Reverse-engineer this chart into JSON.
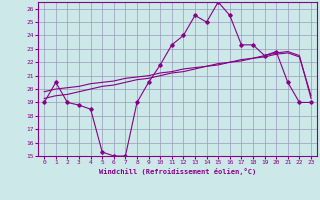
{
  "xlabel": "Windchill (Refroidissement éolien,°C)",
  "bg_color": "#cce8e8",
  "grid_color": "#9999bb",
  "line_color": "#880088",
  "xlim": [
    -0.5,
    23.5
  ],
  "ylim": [
    15,
    26.5
  ],
  "xticks": [
    0,
    1,
    2,
    3,
    4,
    5,
    6,
    7,
    8,
    9,
    10,
    11,
    12,
    13,
    14,
    15,
    16,
    17,
    18,
    19,
    20,
    21,
    22,
    23
  ],
  "yticks": [
    15,
    16,
    17,
    18,
    19,
    20,
    21,
    22,
    23,
    24,
    25,
    26
  ],
  "series1_x": [
    0,
    1,
    2,
    3,
    4,
    5,
    6,
    7,
    8,
    9,
    10,
    11,
    12,
    13,
    14,
    15,
    16,
    17,
    18,
    19,
    20,
    21,
    22,
    23
  ],
  "series1_y": [
    19.0,
    20.5,
    19.0,
    18.8,
    18.5,
    15.3,
    15.0,
    15.0,
    19.0,
    20.5,
    21.8,
    23.3,
    24.0,
    25.5,
    25.0,
    26.5,
    25.5,
    23.3,
    23.3,
    22.5,
    22.8,
    20.5,
    19.0,
    19.0
  ],
  "series2_x": [
    0,
    1,
    2,
    3,
    4,
    5,
    6,
    7,
    8,
    9,
    10,
    11,
    12,
    13,
    14,
    15,
    16,
    17,
    18,
    19,
    20,
    21,
    22,
    23
  ],
  "series2_y": [
    19.3,
    19.5,
    19.6,
    19.8,
    20.0,
    20.2,
    20.3,
    20.5,
    20.7,
    20.8,
    21.0,
    21.2,
    21.3,
    21.5,
    21.7,
    21.8,
    22.0,
    22.2,
    22.3,
    22.5,
    22.7,
    22.8,
    22.5,
    19.3
  ],
  "series3_x": [
    0,
    1,
    2,
    3,
    4,
    5,
    6,
    7,
    8,
    9,
    10,
    11,
    12,
    13,
    14,
    15,
    16,
    17,
    18,
    19,
    20,
    21,
    22,
    23
  ],
  "series3_y": [
    19.8,
    20.0,
    20.1,
    20.2,
    20.4,
    20.5,
    20.6,
    20.8,
    20.9,
    21.0,
    21.2,
    21.3,
    21.5,
    21.6,
    21.7,
    21.9,
    22.0,
    22.1,
    22.3,
    22.4,
    22.6,
    22.7,
    22.4,
    19.5
  ]
}
